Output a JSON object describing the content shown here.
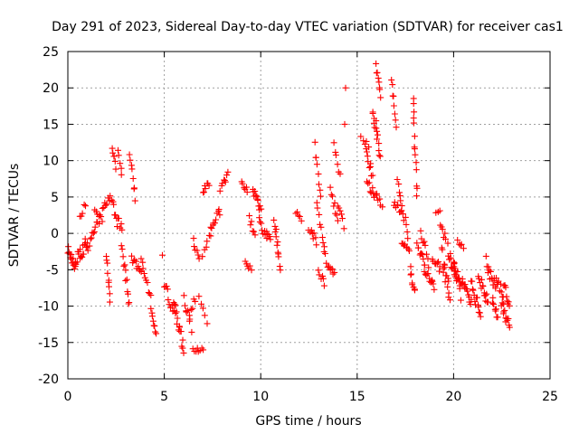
{
  "chart_data": {
    "type": "scatter",
    "title": "Day 291 of 2023, Sidereal Day-to-day VTEC variation (SDTVAR) for receiver cas1",
    "xlabel": "GPS time / hours",
    "ylabel": "SDTVAR / TECUs",
    "xlim": [
      0,
      25
    ],
    "ylim": [
      -20,
      25
    ],
    "xticks": [
      "0",
      "5",
      "10",
      "15",
      "20",
      "25"
    ],
    "yticks": [
      "-20",
      "-15",
      "-10",
      "-5",
      "0",
      "5",
      "10",
      "15",
      "20",
      "25"
    ],
    "grid": true,
    "marker": "plus",
    "color": "#ff0000",
    "segments": [
      {
        "x0": 0.0,
        "x1": 0.4,
        "y0": -2,
        "y1": -5,
        "n": 14,
        "spread": 2.0
      },
      {
        "x0": 0.4,
        "x1": 1.0,
        "y0": -4,
        "y1": -1,
        "n": 18,
        "spread": 2.0
      },
      {
        "x0": 0.6,
        "x1": 0.9,
        "y0": 2,
        "y1": 4,
        "n": 5,
        "spread": 1.0
      },
      {
        "x0": 1.0,
        "x1": 1.6,
        "y0": -2,
        "y1": 2,
        "n": 12,
        "spread": 1.5
      },
      {
        "x0": 1.4,
        "x1": 1.8,
        "y0": 3,
        "y1": 2,
        "n": 7,
        "spread": 0.8
      },
      {
        "x0": 1.8,
        "x1": 2.2,
        "y0": 4,
        "y1": 5,
        "n": 8,
        "spread": 1.2
      },
      {
        "x0": 2.0,
        "x1": 2.2,
        "y0": -3,
        "y1": -9,
        "n": 9,
        "spread": 1.0
      },
      {
        "x0": 2.3,
        "x1": 2.5,
        "y0": 12,
        "y1": 9,
        "n": 6,
        "spread": 1.0
      },
      {
        "x0": 2.3,
        "x1": 2.8,
        "y0": 4,
        "y1": 0,
        "n": 12,
        "spread": 2.0
      },
      {
        "x0": 2.6,
        "x1": 2.8,
        "y0": 11,
        "y1": 8,
        "n": 5,
        "spread": 1.0
      },
      {
        "x0": 2.8,
        "x1": 3.2,
        "y0": -2,
        "y1": -10,
        "n": 12,
        "spread": 1.5
      },
      {
        "x0": 3.2,
        "x1": 3.5,
        "y0": 11,
        "y1": 5,
        "n": 8,
        "spread": 1.2
      },
      {
        "x0": 3.3,
        "x1": 3.8,
        "y0": -3,
        "y1": -6,
        "n": 10,
        "spread": 1.5
      },
      {
        "x0": 3.8,
        "x1": 4.3,
        "y0": -4,
        "y1": -9,
        "n": 10,
        "spread": 1.2
      },
      {
        "x0": 4.3,
        "x1": 4.6,
        "y0": -10,
        "y1": -14,
        "n": 8,
        "spread": 1.0
      },
      {
        "x0": 5.0,
        "x1": 5.5,
        "y0": -7,
        "y1": -11,
        "n": 10,
        "spread": 1.5
      },
      {
        "x0": 5.5,
        "x1": 6.0,
        "y0": -10,
        "y1": -16,
        "n": 16,
        "spread": 2.0
      },
      {
        "x0": 6.0,
        "x1": 6.4,
        "y0": -9,
        "y1": -13,
        "n": 8,
        "spread": 1.5
      },
      {
        "x0": 6.3,
        "x1": 6.6,
        "y0": -11,
        "y1": -9,
        "n": 5,
        "spread": 1.0
      },
      {
        "x0": 6.5,
        "x1": 6.8,
        "y0": -1,
        "y1": -3,
        "n": 6,
        "spread": 1.0
      },
      {
        "x0": 6.5,
        "x1": 7.0,
        "y0": -16,
        "y1": -16,
        "n": 8,
        "spread": 0.6
      },
      {
        "x0": 6.8,
        "x1": 7.2,
        "y0": -9,
        "y1": -12,
        "n": 5,
        "spread": 1.0
      },
      {
        "x0": 7.0,
        "x1": 7.3,
        "y0": 6,
        "y1": 7,
        "n": 7,
        "spread": 1.0
      },
      {
        "x0": 7.0,
        "x1": 7.4,
        "y0": -3,
        "y1": 0,
        "n": 6,
        "spread": 1.0
      },
      {
        "x0": 7.4,
        "x1": 7.9,
        "y0": 1,
        "y1": 3,
        "n": 10,
        "spread": 1.2
      },
      {
        "x0": 7.9,
        "x1": 8.3,
        "y0": 6,
        "y1": 8,
        "n": 8,
        "spread": 1.0
      },
      {
        "x0": 9.0,
        "x1": 9.3,
        "y0": 7,
        "y1": 6,
        "n": 6,
        "spread": 0.8
      },
      {
        "x0": 9.2,
        "x1": 9.5,
        "y0": -4,
        "y1": -5,
        "n": 6,
        "spread": 0.8
      },
      {
        "x0": 9.4,
        "x1": 9.7,
        "y0": 2,
        "y1": 0,
        "n": 6,
        "spread": 1.0
      },
      {
        "x0": 9.6,
        "x1": 10.0,
        "y0": 6,
        "y1": 3,
        "n": 12,
        "spread": 1.5
      },
      {
        "x0": 9.9,
        "x1": 10.3,
        "y0": 2,
        "y1": -1,
        "n": 8,
        "spread": 1.2
      },
      {
        "x0": 10.3,
        "x1": 10.5,
        "y0": 0,
        "y1": -1,
        "n": 5,
        "spread": 0.8
      },
      {
        "x0": 10.7,
        "x1": 11.0,
        "y0": 2,
        "y1": -5,
        "n": 12,
        "spread": 1.5
      },
      {
        "x0": 11.8,
        "x1": 12.1,
        "y0": 3,
        "y1": 2,
        "n": 5,
        "spread": 0.6
      },
      {
        "x0": 12.5,
        "x1": 12.9,
        "y0": 1,
        "y1": -1,
        "n": 8,
        "spread": 1.2
      },
      {
        "x0": 12.8,
        "x1": 13.1,
        "y0": 12,
        "y1": 5,
        "n": 8,
        "spread": 1.2
      },
      {
        "x0": 12.9,
        "x1": 13.3,
        "y0": 4,
        "y1": -2,
        "n": 8,
        "spread": 1.2
      },
      {
        "x0": 13.0,
        "x1": 13.3,
        "y0": -5,
        "y1": -7,
        "n": 6,
        "spread": 1.0
      },
      {
        "x0": 13.3,
        "x1": 13.8,
        "y0": -3,
        "y1": -6,
        "n": 10,
        "spread": 1.5
      },
      {
        "x0": 13.6,
        "x1": 14.0,
        "y0": 6,
        "y1": 2,
        "n": 8,
        "spread": 1.2
      },
      {
        "x0": 13.8,
        "x1": 14.1,
        "y0": 12,
        "y1": 8,
        "n": 6,
        "spread": 1.0
      },
      {
        "x0": 14.0,
        "x1": 14.3,
        "y0": 4,
        "y1": 1,
        "n": 6,
        "spread": 1.0
      },
      {
        "x0": 14.3,
        "x1": 14.5,
        "y0": 20,
        "y1": 20,
        "n": 1,
        "spread": 0.0
      },
      {
        "x0": 14.3,
        "x1": 14.4,
        "y0": 15,
        "y1": 15,
        "n": 1,
        "spread": 0.0
      },
      {
        "x0": 15.2,
        "x1": 15.6,
        "y0": 13,
        "y1": 12,
        "n": 4,
        "spread": 0.8
      },
      {
        "x0": 15.4,
        "x1": 15.8,
        "y0": 12,
        "y1": 8,
        "n": 10,
        "spread": 1.5
      },
      {
        "x0": 15.5,
        "x1": 16.0,
        "y0": 7,
        "y1": 5,
        "n": 10,
        "spread": 1.2
      },
      {
        "x0": 15.8,
        "x1": 16.2,
        "y0": 17,
        "y1": 11,
        "n": 14,
        "spread": 2.0
      },
      {
        "x0": 16.0,
        "x1": 16.2,
        "y0": 23,
        "y1": 19,
        "n": 8,
        "spread": 1.0
      },
      {
        "x0": 16.0,
        "x1": 16.3,
        "y0": 5,
        "y1": 4,
        "n": 5,
        "spread": 0.8
      },
      {
        "x0": 16.8,
        "x1": 17.0,
        "y0": 21,
        "y1": 15,
        "n": 8,
        "spread": 1.0
      },
      {
        "x0": 16.9,
        "x1": 17.3,
        "y0": 4,
        "y1": 3,
        "n": 8,
        "spread": 1.0
      },
      {
        "x0": 17.1,
        "x1": 17.4,
        "y0": 7,
        "y1": 2,
        "n": 8,
        "spread": 1.2
      },
      {
        "x0": 17.3,
        "x1": 17.6,
        "y0": -1,
        "y1": -2,
        "n": 6,
        "spread": 1.0
      },
      {
        "x0": 17.5,
        "x1": 17.8,
        "y0": 2,
        "y1": -5,
        "n": 8,
        "spread": 1.2
      },
      {
        "x0": 17.8,
        "x1": 18.0,
        "y0": -6,
        "y1": -8,
        "n": 6,
        "spread": 1.0
      },
      {
        "x0": 17.9,
        "x1": 18.1,
        "y0": 19,
        "y1": 5,
        "n": 14,
        "spread": 1.5
      },
      {
        "x0": 18.1,
        "x1": 18.5,
        "y0": -1,
        "y1": -5,
        "n": 10,
        "spread": 1.5
      },
      {
        "x0": 18.3,
        "x1": 18.7,
        "y0": 0,
        "y1": -4,
        "n": 8,
        "spread": 1.5
      },
      {
        "x0": 18.5,
        "x1": 19.0,
        "y0": -5,
        "y1": -7,
        "n": 12,
        "spread": 1.5
      },
      {
        "x0": 18.9,
        "x1": 19.3,
        "y0": -3,
        "y1": -5,
        "n": 8,
        "spread": 1.2
      },
      {
        "x0": 19.1,
        "x1": 19.3,
        "y0": 3,
        "y1": 3,
        "n": 3,
        "spread": 0.5
      },
      {
        "x0": 19.3,
        "x1": 19.6,
        "y0": 1,
        "y1": -1,
        "n": 6,
        "spread": 1.2
      },
      {
        "x0": 19.4,
        "x1": 19.8,
        "y0": -3,
        "y1": -9,
        "n": 16,
        "spread": 2.5
      },
      {
        "x0": 19.7,
        "x1": 20.1,
        "y0": -2,
        "y1": -6,
        "n": 14,
        "spread": 2.0
      },
      {
        "x0": 20.0,
        "x1": 20.4,
        "y0": -4,
        "y1": -8,
        "n": 14,
        "spread": 2.5
      },
      {
        "x0": 20.2,
        "x1": 20.5,
        "y0": -1,
        "y1": -2,
        "n": 5,
        "spread": 1.0
      },
      {
        "x0": 20.4,
        "x1": 20.9,
        "y0": -6,
        "y1": -9,
        "n": 14,
        "spread": 2.0
      },
      {
        "x0": 20.9,
        "x1": 21.4,
        "y0": -7,
        "y1": -11,
        "n": 14,
        "spread": 2.0
      },
      {
        "x0": 21.3,
        "x1": 21.8,
        "y0": -6,
        "y1": -9,
        "n": 14,
        "spread": 2.0
      },
      {
        "x0": 21.7,
        "x1": 22.2,
        "y0": -4,
        "y1": -8,
        "n": 14,
        "spread": 2.0
      },
      {
        "x0": 22.0,
        "x1": 22.3,
        "y0": -9,
        "y1": -12,
        "n": 8,
        "spread": 1.5
      },
      {
        "x0": 22.2,
        "x1": 22.6,
        "y0": -6,
        "y1": -9,
        "n": 10,
        "spread": 1.5
      },
      {
        "x0": 22.5,
        "x1": 22.9,
        "y0": -10,
        "y1": -13,
        "n": 12,
        "spread": 1.5
      },
      {
        "x0": 22.6,
        "x1": 22.9,
        "y0": -7,
        "y1": -10,
        "n": 8,
        "spread": 1.2
      }
    ],
    "isolated_points": [
      {
        "x": 4.9,
        "y": -3
      }
    ]
  }
}
